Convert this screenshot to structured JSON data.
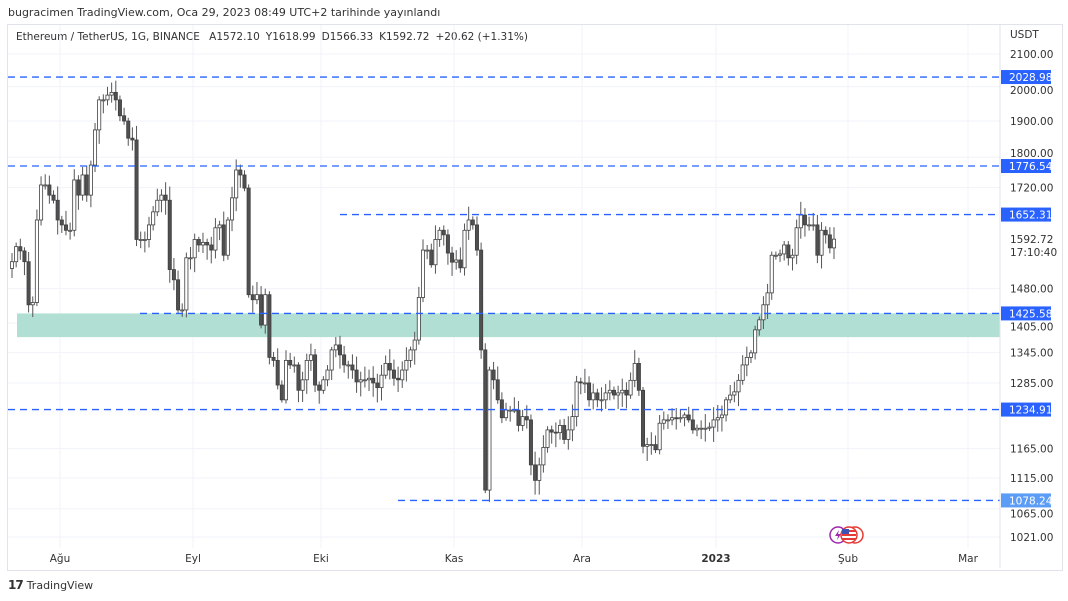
{
  "published": "bugracimen TradingView.com, Oca 29, 2023 08:49 UTC+2 tarihinde yayınlandı",
  "legend": {
    "symbol": "Ethereum / TetherUS, 1G, BINANCE",
    "open": "A1572.10",
    "high": "Y1618.99",
    "low": "D1566.33",
    "close": "K1592.72",
    "change": "+20.62 (+1.31%)"
  },
  "footer": {
    "brand": "TradingView"
  },
  "colors": {
    "level_line": "#2962ff",
    "level_label": "#2962ff",
    "level_label_light": "#5b9cf6",
    "zone": "#b2dfd3",
    "bull_fill": "#ffffff",
    "bear_fill": "#505050",
    "candle_border": "#404040"
  },
  "icons": [
    "lightning-icon",
    "us-flag-icon"
  ],
  "chart_data": {
    "type": "candlestick",
    "symbol": "ETHUSDT",
    "timeframe": "1D",
    "y_scale": "log",
    "currency": "USDT",
    "ylim": [
      1000,
      2150
    ],
    "y_ticks": [
      "2100.00",
      "2000.00",
      "1900.00",
      "1800.00",
      "1720.00",
      "1480.00",
      "1405.00",
      "1345.00",
      "1285.00",
      "1165.00",
      "1115.00",
      "1065.00",
      "1021.00"
    ],
    "x_ticks": [
      "Ağu",
      "Eyl",
      "Eki",
      "Kas",
      "Ara",
      "2023",
      "Şub",
      "Mar"
    ],
    "last_price": "1592.72",
    "countdown": "17:10:40",
    "levels": [
      {
        "price": 2028.98,
        "label": "2028.98"
      },
      {
        "price": 1776.54,
        "label": "1776.54"
      },
      {
        "price": 1652.31,
        "label": "1652.31"
      },
      {
        "price": 1425.58,
        "label": "1425.58"
      },
      {
        "price": 1234.91,
        "label": "1234.91"
      },
      {
        "price": 1078.24,
        "label": "1078.24"
      }
    ],
    "zone": {
      "top": 1425.58,
      "bottom": 1376
    },
    "closes": [
      1540,
      1575,
      1565,
      1540,
      1444,
      1449,
      1639,
      1727,
      1727,
      1701,
      1688,
      1639,
      1627,
      1614,
      1614,
      1740,
      1701,
      1753,
      1701,
      1779,
      1875,
      1961,
      1961,
      1975,
      1983,
      1961,
      1915,
      1900,
      1852,
      1847,
      1592,
      1592,
      1592,
      1627,
      1659,
      1688,
      1701,
      1688,
      1522,
      1499,
      1433,
      1433,
      1549,
      1549,
      1592,
      1579,
      1585,
      1579,
      1567,
      1620,
      1627,
      1555,
      1639,
      1694,
      1766,
      1753,
      1719,
      1466,
      1455,
      1466,
      1401,
      1466,
      1335,
      1329,
      1281,
      1253,
      1329,
      1320,
      1320,
      1271,
      1291,
      1329,
      1340,
      1281,
      1271,
      1291,
      1310,
      1350,
      1360,
      1340,
      1320,
      1320,
      1310,
      1287,
      1291,
      1291,
      1294,
      1285,
      1276,
      1300,
      1323,
      1310,
      1294,
      1291,
      1310,
      1329,
      1350,
      1370,
      1460,
      1567,
      1567,
      1533,
      1592,
      1614,
      1603,
      1560,
      1539,
      1544,
      1526,
      1614,
      1639,
      1627,
      1567,
      1350,
      1095,
      1310,
      1291,
      1253,
      1220,
      1234,
      1234,
      1234,
      1206,
      1222,
      1216,
      1137,
      1111,
      1137,
      1167,
      1198,
      1194,
      1193,
      1206,
      1181,
      1198,
      1222,
      1287,
      1285,
      1285,
      1253,
      1266,
      1253,
      1253,
      1266,
      1271,
      1262,
      1266,
      1271,
      1262,
      1290,
      1323,
      1271,
      1169,
      1172,
      1172,
      1163,
      1210,
      1216,
      1216,
      1220,
      1218,
      1220,
      1225,
      1216,
      1198,
      1201,
      1201,
      1201,
      1203,
      1216,
      1220,
      1225,
      1253,
      1262,
      1268,
      1290,
      1320,
      1335,
      1344,
      1391,
      1412,
      1444,
      1470,
      1555,
      1555,
      1558,
      1579,
      1549,
      1555,
      1620,
      1651,
      1627,
      1627,
      1627,
      1555,
      1614,
      1603,
      1572.1,
      1592.72
    ]
  }
}
